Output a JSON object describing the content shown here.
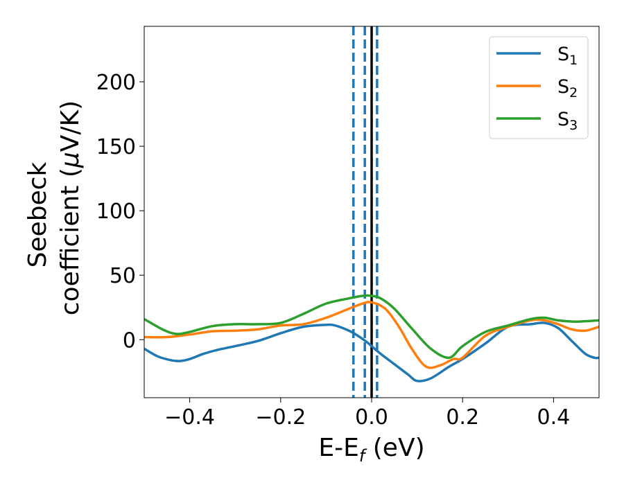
{
  "chart_data": {
    "type": "line",
    "xlabel": {
      "main": "E-E",
      "sub": "f",
      "rest": " (eV)"
    },
    "ylabel": {
      "line1": "Seebeck",
      "line2_pre": "coefficient  (",
      "mu": "μ",
      "line2_post": "V/K)"
    },
    "xlim": [
      -0.5,
      0.5
    ],
    "ylim": [
      -45,
      243
    ],
    "xticks": [
      -0.4,
      -0.2,
      0.0,
      0.2,
      0.4
    ],
    "xtick_labels": [
      "−0.4",
      "−0.2",
      "0.0",
      "0.2",
      "0.4"
    ],
    "yticks": [
      0,
      50,
      100,
      150,
      200
    ],
    "ytick_labels": [
      "0",
      "50",
      "100",
      "150",
      "200"
    ],
    "grid": false,
    "legend_position": "top-right",
    "series": [
      {
        "name": "S",
        "sub": "1",
        "color": "#1f77b4",
        "x": [
          -0.5,
          -0.47,
          -0.44,
          -0.42,
          -0.4,
          -0.37,
          -0.34,
          -0.3,
          -0.25,
          -0.2,
          -0.15,
          -0.1,
          -0.08,
          -0.05,
          -0.03,
          -0.01,
          0.0,
          0.02,
          0.05,
          0.08,
          0.1,
          0.13,
          0.17,
          0.2,
          0.25,
          0.3,
          0.35,
          0.38,
          0.41,
          0.44,
          0.47,
          0.49,
          0.5
        ],
        "values": [
          -7,
          -13,
          -16,
          -16.5,
          -15,
          -11,
          -8,
          -5,
          -1,
          5,
          10,
          11.5,
          11,
          7,
          3,
          -2,
          -5,
          -11,
          -19,
          -27,
          -32,
          -30,
          -21,
          -15,
          -3,
          10,
          12,
          13,
          9,
          -1,
          -11,
          -14,
          -14
        ]
      },
      {
        "name": "S",
        "sub": "2",
        "color": "#ff7f0e",
        "x": [
          -0.5,
          -0.45,
          -0.4,
          -0.35,
          -0.3,
          -0.25,
          -0.2,
          -0.15,
          -0.1,
          -0.05,
          -0.02,
          0.0,
          0.03,
          0.06,
          0.09,
          0.12,
          0.15,
          0.18,
          0.2,
          0.25,
          0.3,
          0.35,
          0.38,
          0.41,
          0.44,
          0.47,
          0.5
        ],
        "values": [
          2,
          2,
          4,
          6.5,
          7,
          8,
          11,
          12,
          17,
          24,
          28,
          29,
          24,
          10,
          -8,
          -21,
          -20,
          -15,
          -14,
          3,
          10,
          15,
          15,
          12,
          8,
          7,
          10
        ]
      },
      {
        "name": "S",
        "sub": "3",
        "color": "#2ca02c",
        "x": [
          -0.5,
          -0.46,
          -0.43,
          -0.4,
          -0.35,
          -0.3,
          -0.25,
          -0.2,
          -0.15,
          -0.1,
          -0.05,
          -0.02,
          0.0,
          0.02,
          0.05,
          0.09,
          0.13,
          0.17,
          0.2,
          0.25,
          0.3,
          0.35,
          0.38,
          0.41,
          0.45,
          0.5
        ],
        "values": [
          16,
          8,
          4.5,
          6,
          10.5,
          12,
          12,
          13,
          20,
          28,
          32,
          34,
          34,
          32,
          24,
          8,
          -7,
          -14,
          -5,
          6,
          11,
          16,
          17,
          15,
          14,
          15
        ]
      }
    ],
    "vlines": [
      {
        "x": -0.04,
        "style": "dashed",
        "color": "#1f77b4"
      },
      {
        "x": -0.015,
        "style": "dashed",
        "color": "#1f77b4"
      },
      {
        "x": 0.0,
        "style": "solid",
        "color": "#000000"
      },
      {
        "x": 0.012,
        "style": "dashed",
        "color": "#1f77b4"
      }
    ]
  }
}
